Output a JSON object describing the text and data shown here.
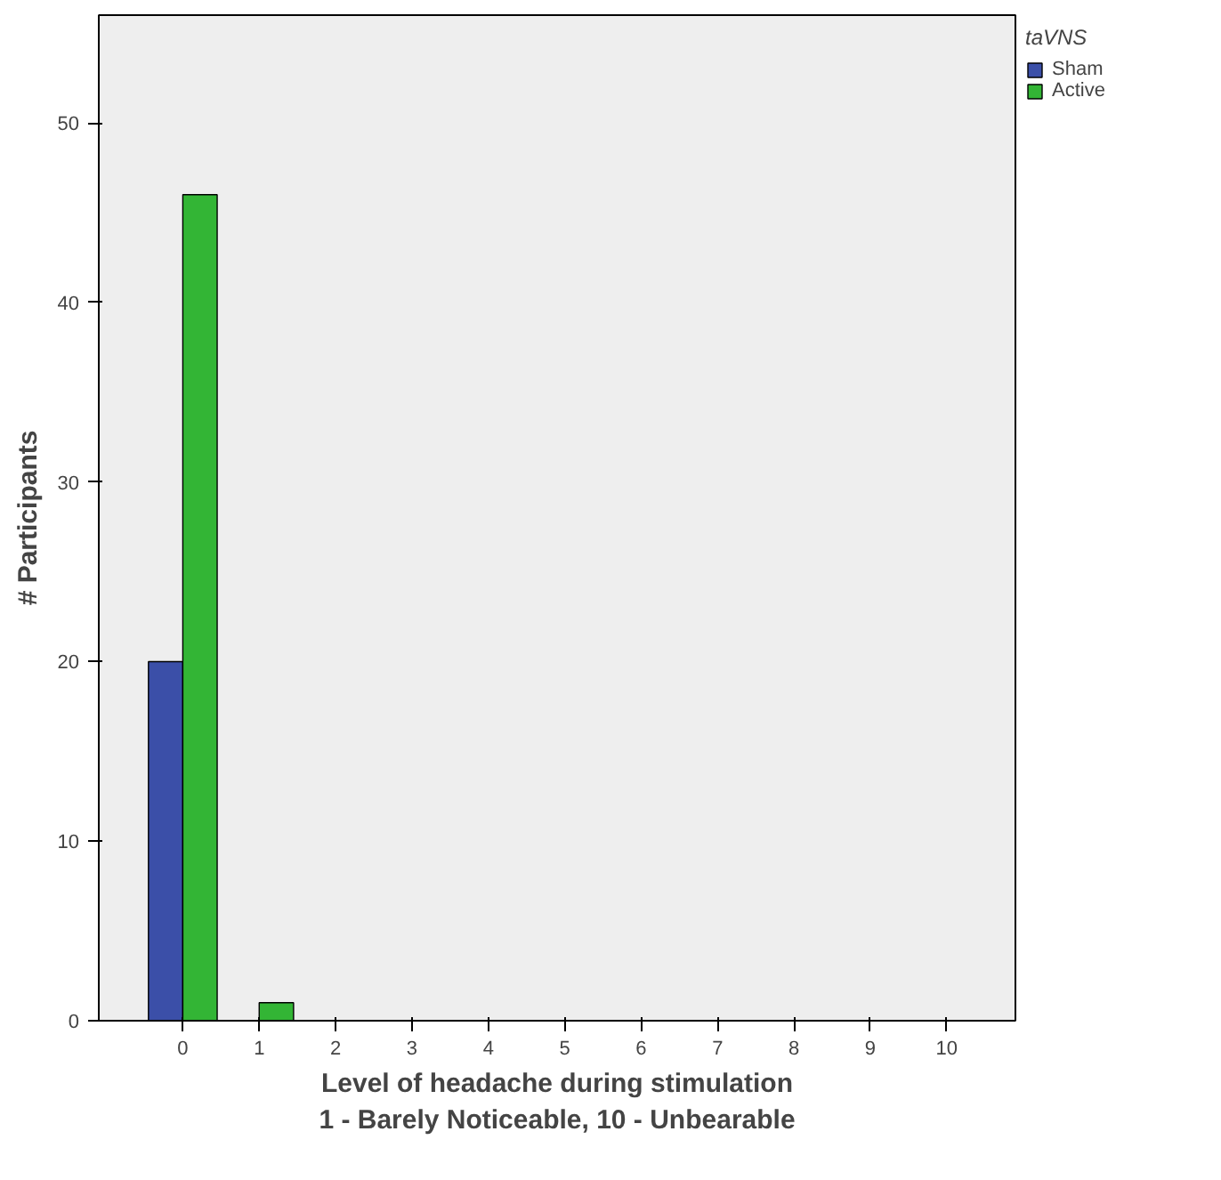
{
  "chart_data": {
    "type": "bar",
    "xlabel": "Level of headache during stimulation\n1 - Barely Noticeable, 10 - Unbearable",
    "ylabel": "# Participants",
    "legend_title": "taVNS",
    "categories": [
      "0",
      "1",
      "2",
      "3",
      "4",
      "5",
      "6",
      "7",
      "8",
      "9",
      "10"
    ],
    "series": [
      {
        "name": "Sham",
        "color": "#3b4fa8",
        "values": [
          20,
          0,
          0,
          0,
          0,
          0,
          0,
          0,
          0,
          0,
          0
        ]
      },
      {
        "name": "Active",
        "color": "#33b535",
        "values": [
          46,
          1,
          0,
          0,
          0,
          0,
          0,
          0,
          0,
          0,
          0
        ]
      }
    ],
    "ylim": [
      0,
      56
    ],
    "yticks": [
      0,
      10,
      20,
      30,
      40,
      50
    ],
    "grid": false,
    "legend": "top right"
  }
}
